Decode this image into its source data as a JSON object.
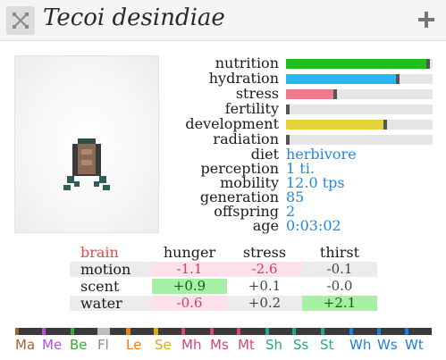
{
  "window": {
    "title": "Tecoi desindiae",
    "close_icon": "close-icon",
    "add_icon": "plus-icon"
  },
  "stats": {
    "nutrition": {
      "label": "nutrition",
      "level": 0.98,
      "color": "#1fbf1f"
    },
    "hydration": {
      "label": "hydration",
      "level": 0.77,
      "color": "#29b6f6"
    },
    "stress": {
      "label": "stress",
      "level": 0.33,
      "color": "#f07a8c"
    },
    "fertility": {
      "label": "fertility",
      "level": 0.0,
      "color": "#9e9e9e"
    },
    "development": {
      "label": "development",
      "level": 0.68,
      "color": "#e8d23a"
    },
    "radiation": {
      "label": "radiation",
      "level": 0.0,
      "color": "#9e9e9e"
    }
  },
  "info": {
    "diet": {
      "label": "diet",
      "value": "herbivore"
    },
    "perception": {
      "label": "perception",
      "value": "1 ti."
    },
    "mobility": {
      "label": "mobility",
      "value": "12.0 tps"
    },
    "generation": {
      "label": "generation",
      "value": "85"
    },
    "offspring": {
      "label": "offspring",
      "value": "2"
    },
    "age": {
      "label": "age",
      "value": "0:03:02"
    }
  },
  "brain": {
    "title": "brain",
    "columns": [
      "hunger",
      "stress",
      "thirst"
    ],
    "rows": [
      {
        "label": "motion",
        "values": [
          "-1.1",
          "-2.6",
          "-0.1"
        ]
      },
      {
        "label": "scent",
        "values": [
          "+0.9",
          "+0.1",
          "-0.0"
        ]
      },
      {
        "label": "water",
        "values": [
          "-0.6",
          "+0.2",
          "+2.1"
        ]
      }
    ]
  },
  "resources": [
    {
      "abbr": "Ma",
      "color": "#a0662a"
    },
    {
      "abbr": "Me",
      "color": "#b64fe0"
    },
    {
      "abbr": "Be",
      "color": "#3aa83a"
    },
    {
      "abbr": "Fl",
      "color": "#8a8a8a"
    },
    {
      "abbr": "Le",
      "color": "#ef7d10"
    },
    {
      "abbr": "Se",
      "color": "#e2a61b"
    },
    {
      "abbr": "Mh",
      "color": "#d6457d"
    },
    {
      "abbr": "Ms",
      "color": "#d6457d"
    },
    {
      "abbr": "Mt",
      "color": "#d6457d"
    },
    {
      "abbr": "Sh",
      "color": "#22a88a"
    },
    {
      "abbr": "Ss",
      "color": "#22a88a"
    },
    {
      "abbr": "St",
      "color": "#22a88a"
    },
    {
      "abbr": "Wh",
      "color": "#1e7fdb"
    },
    {
      "abbr": "Ws",
      "color": "#1e7fdb"
    },
    {
      "abbr": "Wt",
      "color": "#1e7fdb"
    }
  ]
}
